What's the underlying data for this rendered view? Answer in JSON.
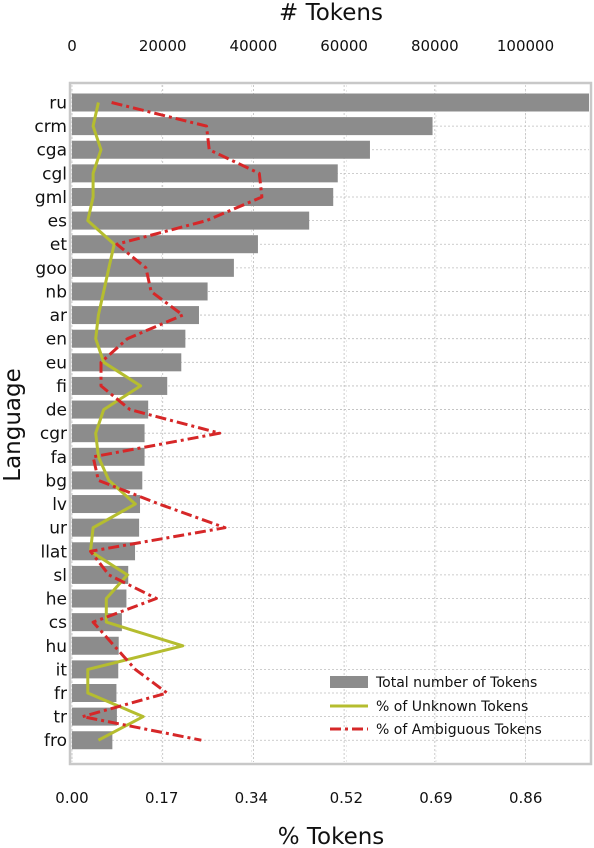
{
  "chart_data": {
    "type": "bar",
    "orientation": "horizontal",
    "top_axis_title": "# Tokens",
    "bottom_axis_title": "% Tokens",
    "y_axis_title": "Language",
    "top_ticks": [
      "0",
      "20000",
      "40000",
      "60000",
      "80000",
      "100000"
    ],
    "bottom_ticks": [
      "0.00",
      "0.17",
      "0.34",
      "0.52",
      "0.69",
      "0.86"
    ],
    "top_xlim": [
      0,
      114000
    ],
    "bottom_xlim": [
      0,
      0.98
    ],
    "grid": true,
    "legend_position": "bottom-right",
    "colors": {
      "bars": "#8c8c8c",
      "unknown": "#b5bd2f",
      "ambiguous": "#d62728"
    },
    "categories": [
      "ru",
      "crm",
      "cga",
      "cgl",
      "gml",
      "es",
      "et",
      "goo",
      "nb",
      "ar",
      "en",
      "eu",
      "fi",
      "de",
      "cgr",
      "fa",
      "bg",
      "lv",
      "ur",
      "llat",
      "sl",
      "he",
      "cs",
      "hu",
      "it",
      "fr",
      "tr",
      "fro"
    ],
    "series": [
      {
        "name": "Total number of Tokens",
        "axis": "top",
        "kind": "bar",
        "values": [
          114000,
          79500,
          65700,
          58600,
          57600,
          52300,
          41000,
          35700,
          29900,
          28000,
          25000,
          24100,
          21000,
          16800,
          16000,
          16000,
          15500,
          15000,
          14800,
          13900,
          12400,
          12000,
          11000,
          10300,
          10200,
          9800,
          9900,
          8900
        ]
      },
      {
        "name": "% of Unknown Tokens",
        "axis": "bottom",
        "kind": "line",
        "values": [
          0.05,
          0.04,
          0.055,
          0.04,
          0.04,
          0.03,
          0.08,
          0.07,
          0.06,
          0.05,
          0.045,
          0.06,
          0.13,
          0.06,
          0.045,
          0.05,
          0.07,
          0.12,
          0.04,
          0.035,
          0.105,
          0.065,
          0.065,
          0.21,
          0.03,
          0.03,
          0.135,
          0.05
        ]
      },
      {
        "name": "% of Ambiguous Tokens",
        "axis": "bottom",
        "kind": "line",
        "values": [
          0.075,
          0.255,
          0.26,
          0.355,
          0.36,
          0.255,
          0.085,
          0.14,
          0.15,
          0.21,
          0.105,
          0.055,
          0.055,
          0.11,
          0.28,
          0.04,
          0.05,
          0.165,
          0.29,
          0.035,
          0.07,
          0.16,
          0.04,
          0.08,
          0.12,
          0.18,
          0.02,
          0.245
        ]
      }
    ]
  }
}
